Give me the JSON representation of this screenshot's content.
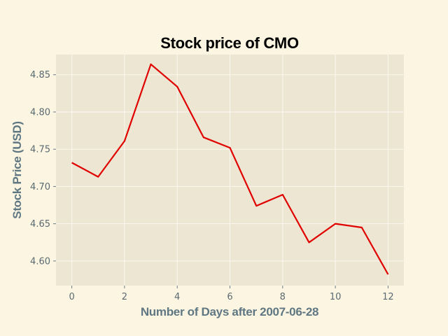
{
  "chart_data": {
    "type": "line",
    "title": "Stock price of CMO",
    "xlabel": "Number of Days after 2007-06-28",
    "ylabel": "Stock Price (USD)",
    "x": [
      0,
      1,
      2,
      3,
      4,
      5,
      6,
      7,
      8,
      9,
      10,
      11,
      12
    ],
    "series": [
      {
        "values": [
          4.732,
          4.713,
          4.761,
          4.864,
          4.834,
          4.766,
          4.752,
          4.674,
          4.689,
          4.625,
          4.65,
          4.645,
          4.582
        ]
      }
    ],
    "xlim": [
      -0.6,
      12.6
    ],
    "ylim": [
      4.567,
      4.877
    ],
    "xticks": [
      "0",
      "2",
      "4",
      "6",
      "8",
      "10",
      "12"
    ],
    "yticks": [
      "4.60",
      "4.65",
      "4.70",
      "4.75",
      "4.80",
      "4.85"
    ],
    "grid": true,
    "colors": {
      "page_background": "#fcf5e1",
      "plot_background": "#ede6d3",
      "grid": "#fbf8f0",
      "line": "#e00000"
    }
  }
}
